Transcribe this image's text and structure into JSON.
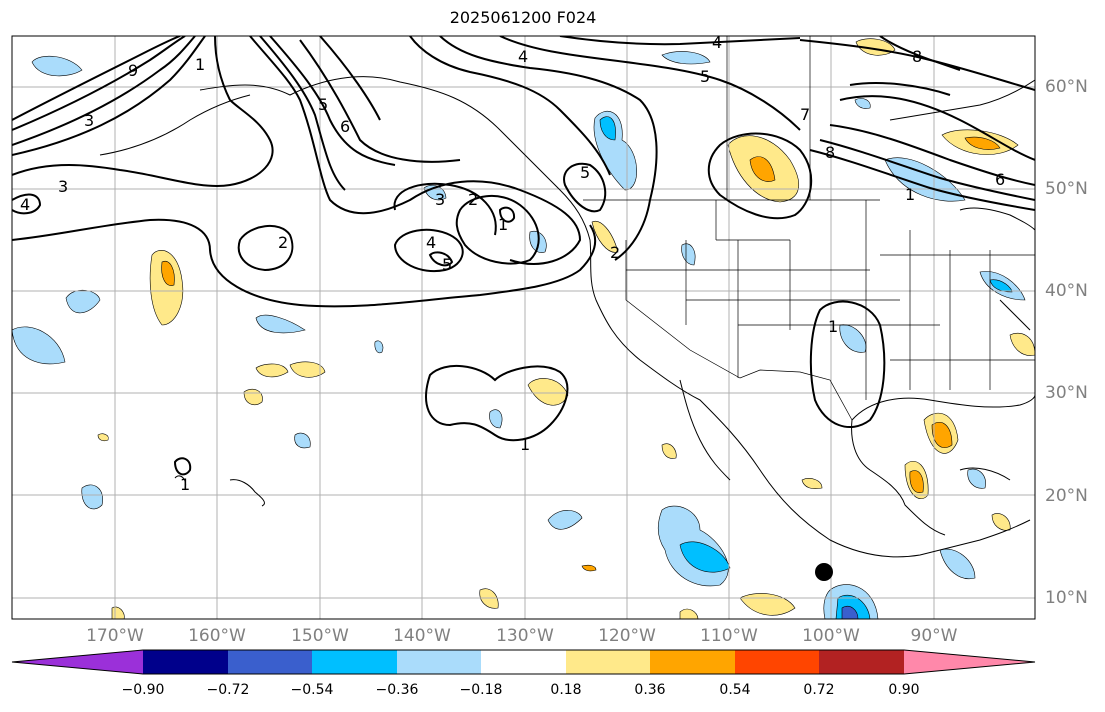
{
  "title": "2025061200 F024",
  "lat_labels": [
    "60°N",
    "50°N",
    "40°N",
    "30°N",
    "20°N",
    "10°N"
  ],
  "lon_labels": [
    "170°W",
    "160°W",
    "150°W",
    "140°W",
    "130°W",
    "120°W",
    "110°W",
    "100°W",
    "90°W"
  ],
  "contour_labels": [
    "1",
    "2",
    "3",
    "4",
    "5",
    "6",
    "7"
  ],
  "colorbar": {
    "ticks": [
      "−0.90",
      "−0.72",
      "−0.54",
      "−0.36",
      "−0.18",
      "0.18",
      "0.36",
      "0.54",
      "0.72",
      "0.90"
    ],
    "colors": [
      "#9b30d9",
      "#00008b",
      "#3a5fcd",
      "#00bfff",
      "#aadcfb",
      "#ffffff",
      "#ffe98a",
      "#ffa500",
      "#ff4500",
      "#b22222",
      "#ff88aa"
    ]
  }
}
